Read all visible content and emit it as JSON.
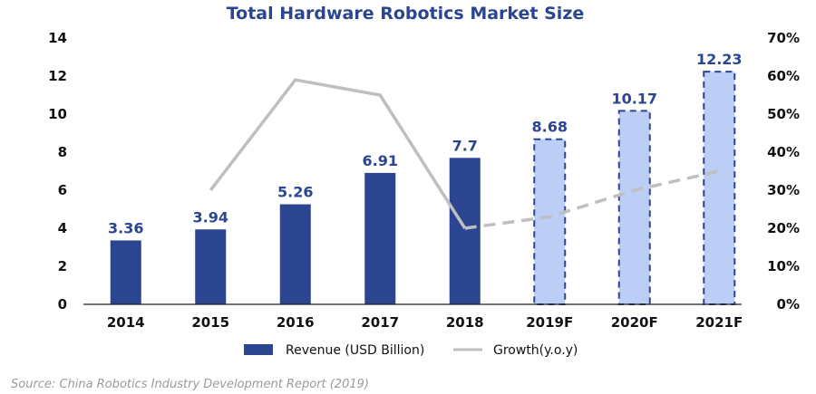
{
  "chart_data": {
    "type": "bar",
    "title": "Total Hardware Robotics Market Size",
    "categories": [
      "2014",
      "2015",
      "2016",
      "2017",
      "2018",
      "2019F",
      "2020F",
      "2021F"
    ],
    "forecast_from_index": 5,
    "series": [
      {
        "name": "Revenue (USD Billion)",
        "type": "bar",
        "axis": "left",
        "values": [
          3.36,
          3.94,
          5.26,
          6.91,
          7.7,
          8.68,
          10.17,
          12.23
        ],
        "labels": [
          "3.36",
          "3.94",
          "5.26",
          "6.91",
          "7.7",
          "8.68",
          "10.17",
          "12.23"
        ]
      },
      {
        "name": "Growth(y.o.y)",
        "type": "line",
        "axis": "right",
        "values": [
          null,
          30,
          59,
          55,
          20,
          23,
          30,
          35
        ],
        "unit": "%"
      }
    ],
    "y_left": {
      "min": 0,
      "max": 14,
      "ticks": [
        "0",
        "2",
        "4",
        "6",
        "8",
        "10",
        "12",
        "14"
      ]
    },
    "y_right": {
      "min": 0,
      "max": 70,
      "ticks": [
        "0%",
        "10%",
        "20%",
        "30%",
        "40%",
        "50%",
        "60%",
        "70%"
      ]
    },
    "legend": {
      "position": "bottom",
      "items": [
        "Revenue (USD Billion)",
        "Growth(y.o.y)"
      ]
    },
    "source": "Source: China Robotics Industry Development Report (2019)",
    "colors": {
      "bar_actual": "#2b4591",
      "bar_forecast": "#bccdf6",
      "bar_forecast_border": "#2b4591",
      "growth_line": "#bfbfbf",
      "title": "#2b4591",
      "axis": "#222222"
    }
  }
}
